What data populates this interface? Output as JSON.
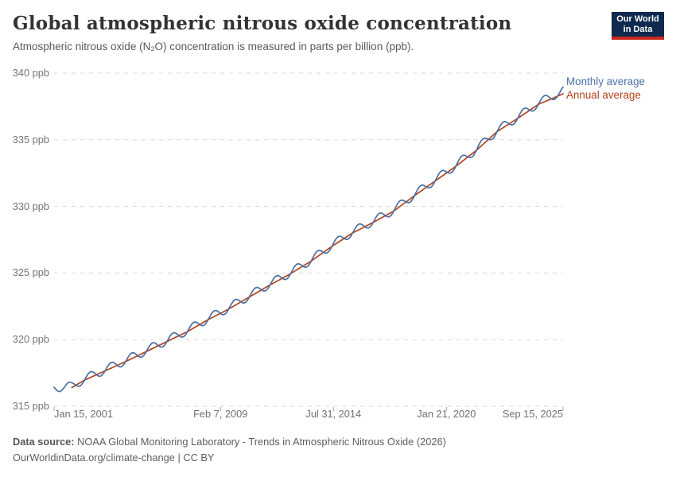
{
  "header": {
    "title": "Global atmospheric nitrous oxide concentration",
    "subtitle": "Atmospheric nitrous oxide (N₂O) concentration is measured in parts per billion (ppb).",
    "logo": {
      "line1": "Our World",
      "line2": "in Data",
      "bg_color": "#0F2A4E",
      "accent_color": "#C9281E"
    }
  },
  "chart_data": {
    "type": "line",
    "title": "Global atmospheric nitrous oxide concentration",
    "unit": "ppb",
    "x_range": [
      2001.038,
      2025.705
    ],
    "y_range": [
      315,
      340
    ],
    "grid": "horizontal-dashed",
    "legend_position": "right-of-line-ends",
    "gridline_color": "#D8D8D8",
    "tick_color": "#A8A8A8",
    "y_ticks": [
      {
        "v": 340,
        "label": "340 ppb"
      },
      {
        "v": 335,
        "label": "335 ppb"
      },
      {
        "v": 330,
        "label": "330 ppb"
      },
      {
        "v": 325,
        "label": "325 ppb"
      },
      {
        "v": 320,
        "label": "320 ppb"
      },
      {
        "v": 315,
        "label": "315 ppb"
      }
    ],
    "x_ticks": [
      {
        "t": 2001.038,
        "label": "Jan 15, 2001",
        "align": "start"
      },
      {
        "t": 2009.104,
        "label": "Feb 7, 2009",
        "align": "middle"
      },
      {
        "t": 2014.578,
        "label": "Jul 31, 2014",
        "align": "middle"
      },
      {
        "t": 2020.055,
        "label": "Jan 21, 2020",
        "align": "middle"
      },
      {
        "t": 2025.705,
        "label": "Sep 15, 2025",
        "align": "end"
      }
    ],
    "series": [
      {
        "id": "monthly",
        "label": "Monthly average",
        "color": "#4C6FA5",
        "model": {
          "type": "annual-trend-plus-seasonal-cycle",
          "start": 2001.038,
          "end": 2025.705,
          "start_value": 316.32,
          "end_value": 338.6,
          "seasonal_amplitude": 0.33,
          "seasonal_phase": 0.55,
          "offset": 0.09,
          "samples_per_year": 24
        }
      },
      {
        "id": "annual",
        "label": "Annual average",
        "color": "#B5431C",
        "points": [
          [
            2001.9,
            316.4
          ],
          [
            2002.5,
            316.95
          ],
          [
            2003.5,
            317.65
          ],
          [
            2004.5,
            318.35
          ],
          [
            2005.5,
            319.1
          ],
          [
            2006.5,
            319.85
          ],
          [
            2007.5,
            320.6
          ],
          [
            2008.5,
            321.5
          ],
          [
            2009.5,
            322.3
          ],
          [
            2010.5,
            323.2
          ],
          [
            2011.5,
            324.1
          ],
          [
            2012.5,
            324.95
          ],
          [
            2013.5,
            325.9
          ],
          [
            2014.5,
            327.0
          ],
          [
            2015.5,
            328.0
          ],
          [
            2016.5,
            328.8
          ],
          [
            2017.5,
            329.65
          ],
          [
            2018.5,
            330.8
          ],
          [
            2019.5,
            331.9
          ],
          [
            2020.5,
            333.0
          ],
          [
            2021.5,
            334.2
          ],
          [
            2022.5,
            335.6
          ],
          [
            2023.5,
            336.6
          ],
          [
            2024.5,
            337.65
          ],
          [
            2025.705,
            338.45
          ]
        ]
      }
    ]
  },
  "footer": {
    "source_label": "Data source:",
    "source_text": "NOAA Global Monitoring Laboratory - Trends in Atmospheric Nitrous Oxide (2026)",
    "line2": "OurWorldinData.org/climate-change | CC BY"
  }
}
